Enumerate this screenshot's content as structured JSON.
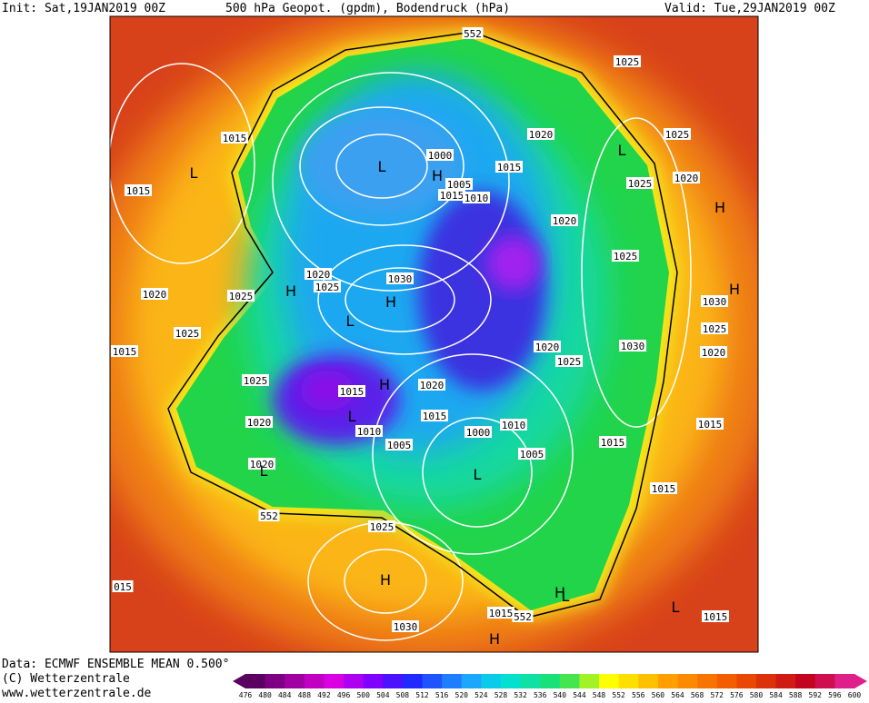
{
  "header": {
    "init": "Init: Sat,19JAN2019 00Z",
    "title": "500 hPa Geopot. (gpdm), Bodendruck (hPa)",
    "valid": "Valid: Tue,29JAN2019 00Z"
  },
  "footer": {
    "data": "Data: ECMWF ENSEMBLE MEAN 0.500°",
    "copyright": "(C) Wetterzentrale",
    "url": "www.wetterzentrale.de"
  },
  "colorbar": {
    "ticks": [
      476,
      480,
      484,
      488,
      492,
      496,
      500,
      504,
      508,
      512,
      516,
      520,
      524,
      528,
      532,
      536,
      540,
      544,
      548,
      552,
      556,
      560,
      564,
      568,
      572,
      576,
      580,
      584,
      588,
      592,
      596,
      600
    ]
  },
  "map_labels": [
    "552",
    "552",
    "552",
    "1025",
    "1015",
    "L",
    "1015",
    "L",
    "1000",
    "H",
    "1005",
    "1015",
    "1010",
    "1015",
    "1020",
    "L",
    "1025",
    "1020",
    "1025",
    "1020",
    "H",
    "1025",
    "1020",
    "1025",
    "H",
    "1030",
    "H",
    "1020",
    "1025",
    "L",
    "1025",
    "1015",
    "1020",
    "1025",
    "1030",
    "1030",
    "1025",
    "1020",
    "H",
    "1025",
    "1015",
    "H",
    "1020",
    "L",
    "1020",
    "1010",
    "1015",
    "1005",
    "1000",
    "1010",
    "1015",
    "1015",
    "1005",
    "1020",
    "L",
    "L",
    "1015",
    "1025",
    "H",
    "1030",
    "015",
    "1015",
    "H",
    "L",
    "L",
    "1015",
    "H"
  ]
}
